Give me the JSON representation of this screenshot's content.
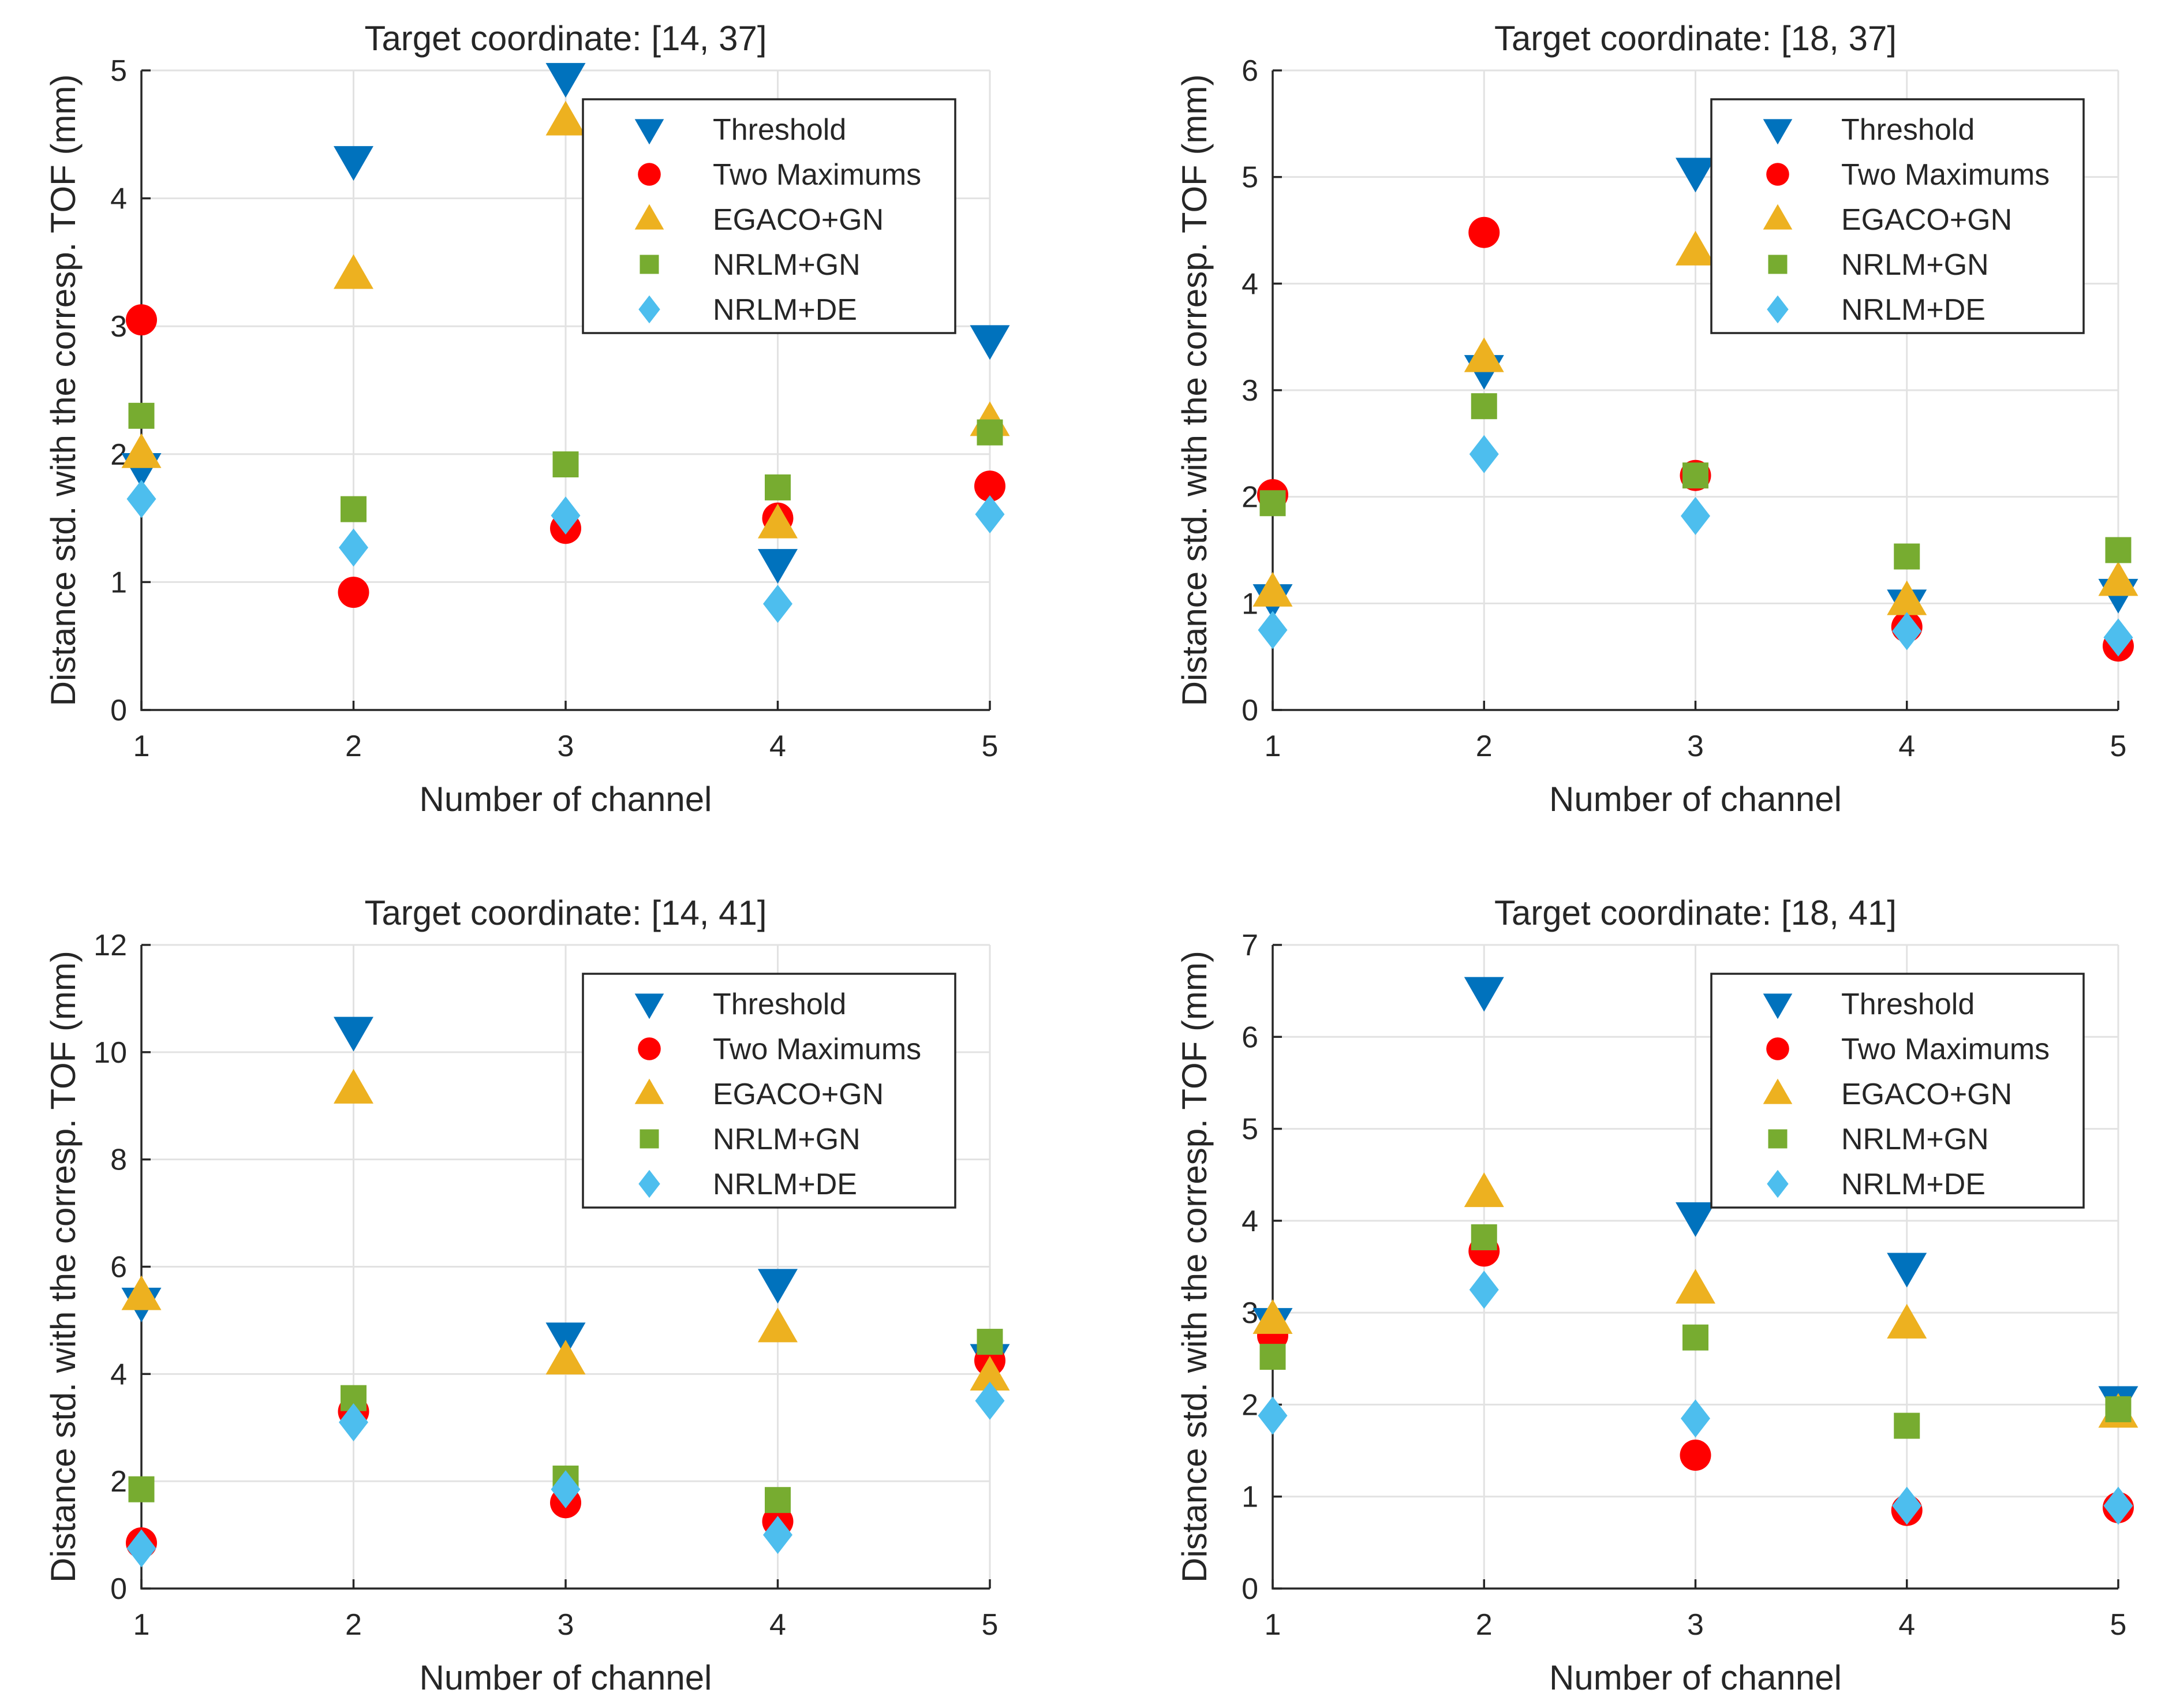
{
  "chart_data": [
    {
      "type": "scatter",
      "title": "Target coordinate: [14, 37]",
      "xlabel": "Number of channel",
      "ylabel": "Distance std. with the corresp. TOF (mm)",
      "x": [
        1,
        2,
        3,
        4,
        5
      ],
      "xlim": [
        1,
        5
      ],
      "ylim": [
        0,
        5
      ],
      "xticks": [
        "1",
        "2",
        "3",
        "4",
        "5"
      ],
      "yticks": [
        "0",
        "1",
        "2",
        "3",
        "4",
        "5"
      ],
      "grid": true,
      "legend_position": "top-right",
      "series": [
        {
          "name": "Threshold",
          "values": [
            1.9,
            4.3,
            4.95,
            1.15,
            2.9
          ]
        },
        {
          "name": "Two Maximums",
          "values": [
            3.05,
            0.92,
            1.42,
            1.5,
            1.75
          ]
        },
        {
          "name": "EGACO+GN",
          "values": [
            2.0,
            3.4,
            4.6,
            1.45,
            2.25
          ]
        },
        {
          "name": "NRLM+GN",
          "values": [
            2.3,
            1.57,
            1.92,
            1.74,
            2.17
          ]
        },
        {
          "name": "NRLM+DE",
          "values": [
            1.65,
            1.27,
            1.52,
            0.83,
            1.53
          ]
        }
      ]
    },
    {
      "type": "scatter",
      "title": "Target coordinate: [18, 37]",
      "xlabel": "Number of channel",
      "ylabel": "Distance std. with the corresp. TOF (mm)",
      "x": [
        1,
        2,
        3,
        4,
        5
      ],
      "xlim": [
        1,
        5
      ],
      "ylim": [
        0,
        6
      ],
      "xticks": [
        "1",
        "2",
        "3",
        "4",
        "5"
      ],
      "yticks": [
        "0",
        "1",
        "2",
        "3",
        "4",
        "5",
        "6"
      ],
      "grid": true,
      "legend_position": "top-right",
      "series": [
        {
          "name": "Threshold",
          "values": [
            1.05,
            3.2,
            5.05,
            1.0,
            1.1
          ]
        },
        {
          "name": "Two Maximums",
          "values": [
            2.02,
            4.48,
            2.2,
            0.78,
            0.6
          ]
        },
        {
          "name": "EGACO+GN",
          "values": [
            1.1,
            3.3,
            4.3,
            1.02,
            1.2
          ]
        },
        {
          "name": "NRLM+GN",
          "values": [
            1.94,
            2.85,
            2.2,
            1.44,
            1.5
          ]
        },
        {
          "name": "NRLM+DE",
          "values": [
            0.75,
            2.4,
            1.82,
            0.74,
            0.68
          ]
        }
      ]
    },
    {
      "type": "scatter",
      "title": "Target coordinate: [14, 41]",
      "xlabel": "Number of channel",
      "ylabel": "Distance std. with the corresp. TOF (mm)",
      "x": [
        1,
        2,
        3,
        4,
        5
      ],
      "xlim": [
        1,
        5
      ],
      "ylim": [
        0,
        12
      ],
      "xticks": [
        "1",
        "2",
        "3",
        "4",
        "5"
      ],
      "yticks": [
        "0",
        "2",
        "4",
        "6",
        "8",
        "10",
        "12"
      ],
      "grid": true,
      "legend_position": "top-right",
      "series": [
        {
          "name": "Threshold",
          "values": [
            5.35,
            10.4,
            4.7,
            5.7,
            4.3
          ]
        },
        {
          "name": "Two Maximums",
          "values": [
            0.85,
            3.3,
            1.6,
            1.25,
            4.25
          ]
        },
        {
          "name": "EGACO+GN",
          "values": [
            5.45,
            9.3,
            4.25,
            4.85,
            3.95
          ]
        },
        {
          "name": "NRLM+GN",
          "values": [
            1.85,
            3.55,
            2.05,
            1.65,
            4.6
          ]
        },
        {
          "name": "NRLM+DE",
          "values": [
            0.75,
            3.1,
            1.85,
            1.0,
            3.5
          ]
        }
      ]
    },
    {
      "type": "scatter",
      "title": "Target coordinate: [18, 41]",
      "xlabel": "Number of channel",
      "ylabel": "Distance std. with the corresp. TOF (mm)",
      "x": [
        1,
        2,
        3,
        4,
        5
      ],
      "xlim": [
        1,
        5
      ],
      "ylim": [
        0,
        7
      ],
      "xticks": [
        "1",
        "2",
        "3",
        "4",
        "5"
      ],
      "yticks": [
        "0",
        "1",
        "2",
        "3",
        "4",
        "5",
        "6",
        "7"
      ],
      "grid": true,
      "legend_position": "top-right",
      "series": [
        {
          "name": "Threshold",
          "values": [
            2.9,
            6.5,
            4.05,
            3.5,
            2.05
          ]
        },
        {
          "name": "Two Maximums",
          "values": [
            2.75,
            3.67,
            1.45,
            0.85,
            0.88
          ]
        },
        {
          "name": "EGACO+GN",
          "values": [
            2.92,
            4.3,
            3.25,
            2.87,
            1.9
          ]
        },
        {
          "name": "NRLM+GN",
          "values": [
            2.52,
            3.82,
            2.73,
            1.77,
            1.95
          ]
        },
        {
          "name": "NRLM+DE",
          "values": [
            1.88,
            3.25,
            1.85,
            0.9,
            0.9
          ]
        }
      ]
    }
  ],
  "colors": {
    "Threshold": "#0072BD",
    "Two Maximums": "#FF0000",
    "EGACO+GN": "#EDB120",
    "NRLM+GN": "#77AC30",
    "NRLM+DE": "#4DBEEE"
  },
  "markers": {
    "Threshold": "triangle-down",
    "Two Maximums": "circle",
    "EGACO+GN": "triangle-up",
    "NRLM+GN": "square",
    "NRLM+DE": "diamond"
  }
}
